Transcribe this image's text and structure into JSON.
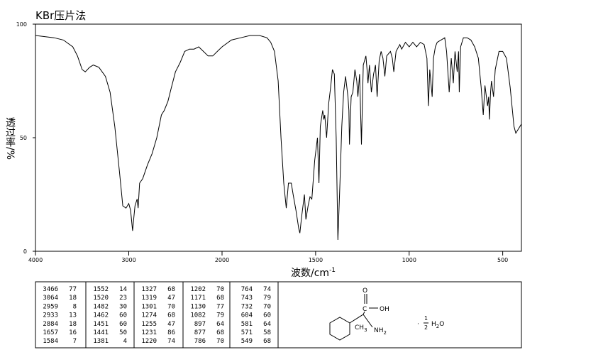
{
  "chart_data": {
    "type": "line",
    "title": "KBr压片法",
    "ylabel": "透过率/%",
    "xlabel": "波数/cm",
    "xlabel_sup": "-1",
    "color": "#000000",
    "xlim": [
      4000,
      400
    ],
    "xbreak": 2000,
    "xticks": [
      4000,
      3000,
      2000,
      1500,
      1000,
      500
    ],
    "ylim": [
      0,
      100
    ],
    "yticks": [
      0,
      50,
      100
    ],
    "x": [
      4000,
      3900,
      3800,
      3700,
      3600,
      3550,
      3500,
      3466,
      3420,
      3380,
      3320,
      3250,
      3200,
      3150,
      3100,
      3064,
      3030,
      3000,
      2980,
      2959,
      2945,
      2933,
      2910,
      2900,
      2884,
      2850,
      2800,
      2750,
      2700,
      2650,
      2620,
      2580,
      2550,
      2500,
      2450,
      2400,
      2350,
      2300,
      2250,
      2200,
      2150,
      2100,
      2050,
      2000,
      1950,
      1900,
      1850,
      1800,
      1760,
      1740,
      1720,
      1700,
      1685,
      1670,
      1657,
      1645,
      1630,
      1620,
      1605,
      1590,
      1584,
      1575,
      1560,
      1552,
      1540,
      1530,
      1520,
      1505,
      1490,
      1482,
      1475,
      1462,
      1456,
      1451,
      1441,
      1430,
      1420,
      1410,
      1400,
      1390,
      1381,
      1370,
      1360,
      1350,
      1340,
      1327,
      1322,
      1319,
      1310,
      1301,
      1290,
      1280,
      1274,
      1265,
      1255,
      1245,
      1231,
      1225,
      1220,
      1212,
      1202,
      1190,
      1180,
      1171,
      1160,
      1150,
      1140,
      1130,
      1120,
      1100,
      1090,
      1082,
      1070,
      1050,
      1040,
      1020,
      1000,
      980,
      960,
      940,
      920,
      905,
      897,
      890,
      877,
      870,
      860,
      850,
      830,
      810,
      800,
      786,
      775,
      764,
      755,
      743,
      736,
      732,
      725,
      710,
      690,
      670,
      650,
      630,
      615,
      604,
      595,
      581,
      575,
      571,
      565,
      560,
      549,
      540,
      520,
      500,
      480,
      460,
      440,
      430,
      415,
      400
    ],
    "values": [
      95,
      94.5,
      94,
      93,
      90,
      86,
      80,
      79,
      81,
      82,
      81,
      77,
      70,
      55,
      35,
      20,
      19,
      21,
      18,
      9,
      15,
      20,
      23,
      19,
      30,
      32,
      38,
      43,
      50,
      60,
      62,
      66,
      71,
      79,
      83,
      88,
      89,
      89,
      90,
      88,
      86,
      86,
      88,
      90,
      93,
      94,
      95,
      95,
      94,
      92,
      88,
      75,
      50,
      30,
      19,
      30,
      30,
      25,
      18,
      10,
      8,
      15,
      25,
      14,
      20,
      24,
      23,
      40,
      50,
      30,
      55,
      62,
      58,
      60,
      50,
      65,
      72,
      80,
      78,
      50,
      5,
      30,
      55,
      70,
      77,
      68,
      62,
      47,
      68,
      70,
      80,
      75,
      68,
      78,
      47,
      82,
      86,
      80,
      74,
      82,
      70,
      78,
      82,
      68,
      84,
      88,
      85,
      77,
      86,
      88,
      85,
      79,
      88,
      91,
      89,
      92,
      90,
      92,
      90,
      92,
      91,
      85,
      64,
      80,
      68,
      85,
      90,
      92,
      93,
      94,
      88,
      70,
      85,
      74,
      88,
      79,
      88,
      70,
      90,
      94,
      94,
      93,
      90,
      85,
      72,
      60,
      73,
      64,
      68,
      58,
      70,
      75,
      68,
      80,
      88,
      88,
      85,
      72,
      55,
      52,
      54,
      56
    ]
  },
  "peaks": [
    [
      3466,
      77
    ],
    [
      3064,
      18
    ],
    [
      2959,
      8
    ],
    [
      2933,
      13
    ],
    [
      2884,
      18
    ],
    [
      1657,
      16
    ],
    [
      1584,
      7
    ],
    [
      1552,
      14
    ],
    [
      1520,
      23
    ],
    [
      1482,
      30
    ],
    [
      1462,
      60
    ],
    [
      1451,
      60
    ],
    [
      1441,
      50
    ],
    [
      1381,
      4
    ],
    [
      1327,
      68
    ],
    [
      1319,
      47
    ],
    [
      1301,
      70
    ],
    [
      1274,
      68
    ],
    [
      1255,
      47
    ],
    [
      1231,
      86
    ],
    [
      1220,
      74
    ],
    [
      1202,
      70
    ],
    [
      1171,
      68
    ],
    [
      1130,
      77
    ],
    [
      1082,
      79
    ],
    [
      897,
      64
    ],
    [
      877,
      68
    ],
    [
      786,
      70
    ],
    [
      764,
      74
    ],
    [
      743,
      79
    ],
    [
      732,
      70
    ],
    [
      604,
      60
    ],
    [
      581,
      64
    ],
    [
      571,
      58
    ],
    [
      549,
      68
    ]
  ],
  "structure": {
    "o": "O",
    "c": "C",
    "oh": "OH",
    "ch": "CH",
    "ch_sub": "3",
    "nh": "NH",
    "nh_sub": "2",
    "dot": "·",
    "num": "1",
    "den": "2",
    "h": "H",
    "h_sub": "2",
    "o2": "O"
  }
}
